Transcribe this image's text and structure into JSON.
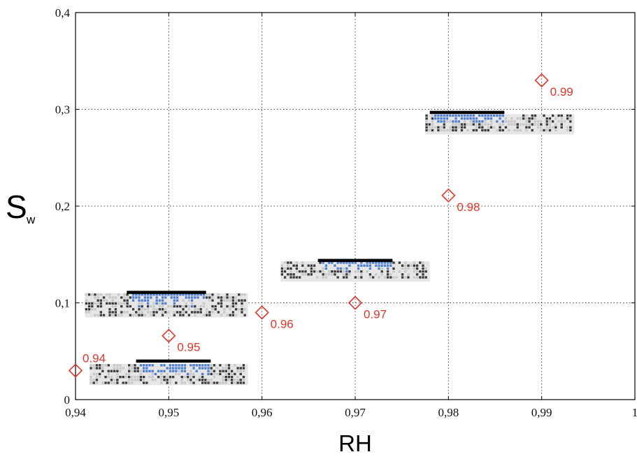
{
  "chart_data": {
    "type": "scatter",
    "xlabel": "RH",
    "ylabel": "S",
    "ylabel_subscript": "w",
    "xlim": [
      0.94,
      1.0
    ],
    "ylim": [
      0,
      0.4
    ],
    "grid": true,
    "grid_style": "dotted",
    "xticks": [
      0.94,
      0.95,
      0.96,
      0.97,
      0.98,
      0.99,
      1.0
    ],
    "xtick_labels": [
      "0,94",
      "0,95",
      "0,96",
      "0,97",
      "0,98",
      "0,99",
      "1"
    ],
    "yticks": [
      0,
      0.1,
      0.2,
      0.3,
      0.4
    ],
    "ytick_labels": [
      "0",
      "0,1",
      "0,2",
      "0,3",
      "0,4"
    ],
    "points": [
      {
        "x": 0.94,
        "y": 0.03,
        "label": "0.94"
      },
      {
        "x": 0.95,
        "y": 0.066,
        "label": "0.95"
      },
      {
        "x": 0.96,
        "y": 0.09,
        "label": "0.96"
      },
      {
        "x": 0.97,
        "y": 0.1,
        "label": "0.97"
      },
      {
        "x": 0.98,
        "y": 0.211,
        "label": "0.98"
      },
      {
        "x": 0.99,
        "y": 0.33,
        "label": "0.99"
      }
    ],
    "marker": "diamond",
    "marker_color": "#e0352b",
    "inset_images": [
      {
        "x_range": [
          0.9415,
          0.9585
        ],
        "y_range": [
          0.015,
          0.037
        ],
        "bar_x": [
          0.9465,
          0.9545
        ],
        "bar_y": 0.04
      },
      {
        "x_range": [
          0.941,
          0.9585
        ],
        "y_range": [
          0.085,
          0.11
        ],
        "bar_x": [
          0.9455,
          0.954
        ],
        "bar_y": 0.111
      },
      {
        "x_range": [
          0.962,
          0.978
        ],
        "y_range": [
          0.122,
          0.143
        ],
        "bar_x": [
          0.966,
          0.974
        ],
        "bar_y": 0.144
      },
      {
        "x_range": [
          0.9775,
          0.9935
        ],
        "y_range": [
          0.274,
          0.295
        ],
        "bar_x": [
          0.978,
          0.986
        ],
        "bar_y": 0.297
      }
    ],
    "inset_colors": {
      "grain": "#c8c8c8",
      "dark": "#3a3a3a",
      "water": "#4f7fd0",
      "bar": "#000000"
    }
  }
}
